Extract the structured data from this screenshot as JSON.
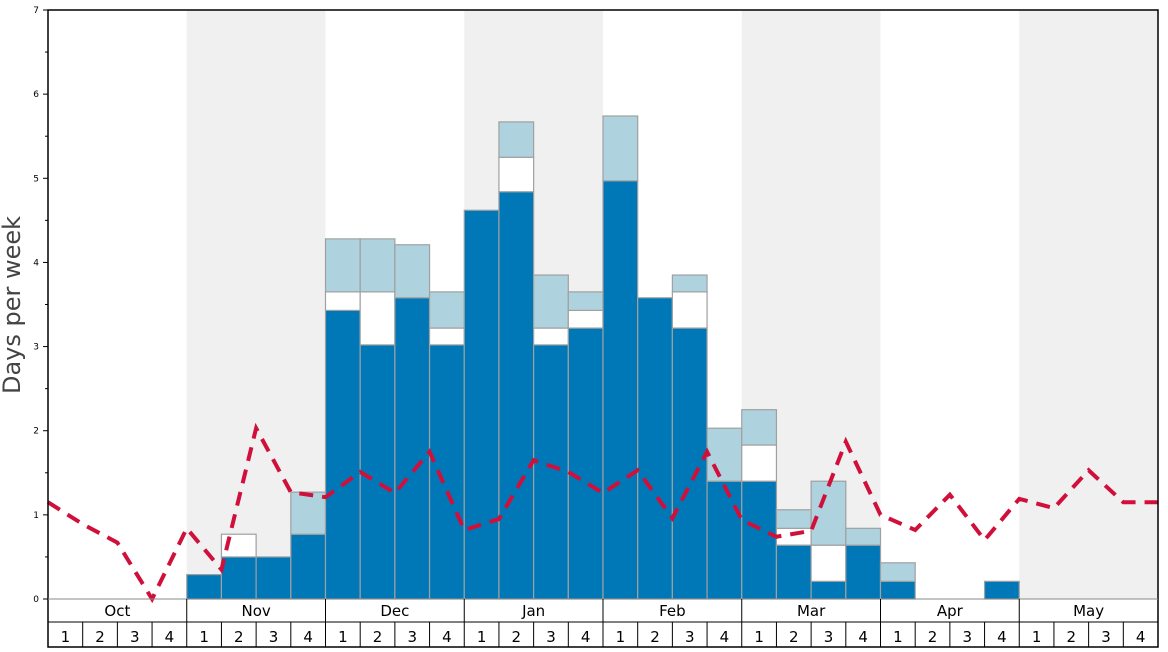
{
  "chart_data": {
    "type": "bar",
    "stacked": true,
    "ylabel": "Days per week",
    "xlabel": "",
    "ylim": [
      0,
      7
    ],
    "yticks": [
      "0",
      "1",
      "2",
      "3",
      "4",
      "5",
      "6",
      "7"
    ],
    "grid": false,
    "months": [
      "Oct",
      "Nov",
      "Dec",
      "Jan",
      "Feb",
      "Mar",
      "Apr",
      "May"
    ],
    "shaded_months": [
      "Nov",
      "Jan",
      "Mar",
      "May"
    ],
    "weeks_per_month": [
      "1",
      "2",
      "3",
      "4"
    ],
    "colors": {
      "dark": "#0077b6",
      "white": "#ffffff",
      "light": "#aed3df",
      "line": "#d0103a",
      "shade": "#f0f0f0"
    },
    "series": [
      {
        "values": [
          0,
          0,
          0,
          0,
          0.29,
          0.5,
          0.5,
          0.77,
          3.43,
          3.02,
          3.58,
          3.02,
          4.62,
          4.84,
          3.02,
          3.22,
          4.97,
          3.58,
          3.22,
          1.4,
          1.4,
          0.64,
          0.21,
          0.64,
          0.21,
          0,
          0,
          0.21,
          0,
          0,
          0,
          0
        ]
      },
      {
        "values": [
          0,
          0,
          0,
          0,
          0,
          0.27,
          0,
          0,
          0.22,
          0.63,
          0,
          0.2,
          0,
          0.41,
          0.2,
          0.21,
          0,
          0,
          0.43,
          0,
          0.43,
          0.2,
          0.43,
          0,
          0,
          0,
          0,
          0,
          0,
          0,
          0,
          0
        ]
      },
      {
        "values": [
          0,
          0,
          0,
          0,
          0,
          0,
          0,
          0.5,
          0.63,
          0.63,
          0.63,
          0.43,
          0,
          0.42,
          0.63,
          0.22,
          0.77,
          0,
          0.2,
          0.63,
          0.42,
          0.22,
          0.76,
          0.2,
          0.22,
          0,
          0,
          0,
          0,
          0,
          0,
          0
        ]
      }
    ],
    "line": {
      "style": "dashed",
      "values": [
        1.15,
        0.89,
        0.67,
        0.0,
        0.84,
        0.35,
        2.03,
        1.27,
        1.21,
        1.51,
        1.26,
        1.75,
        0.82,
        0.95,
        1.65,
        1.51,
        1.26,
        1.53,
        0.96,
        1.75,
        0.94,
        0.74,
        0.81,
        1.87,
        1.0,
        0.82,
        1.24,
        0.7,
        1.19,
        1.08,
        1.53,
        1.15,
        1.15
      ]
    }
  }
}
